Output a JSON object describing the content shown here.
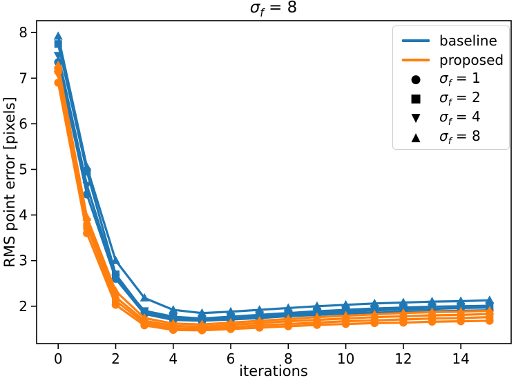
{
  "figure": {
    "title": {
      "sigma": "σ",
      "sub": "f",
      "rest": " = 8"
    },
    "x_label": "iterations",
    "y_label": "RMS point error [pixels]"
  },
  "colors": {
    "baseline": "#1f77b4",
    "proposed": "#ff7f0e",
    "axis": "#000000",
    "legend_border": "#cccccc",
    "background": "#ffffff"
  },
  "legend": {
    "position": "upper right",
    "items": [
      {
        "type": "line",
        "color_key": "baseline",
        "label": "baseline"
      },
      {
        "type": "line",
        "color_key": "proposed",
        "label": "proposed"
      },
      {
        "type": "marker",
        "marker": "circle",
        "sigma": "σ",
        "sub": "f",
        "rest": " = 1"
      },
      {
        "type": "marker",
        "marker": "square",
        "sigma": "σ",
        "sub": "f",
        "rest": " = 2"
      },
      {
        "type": "marker",
        "marker": "triangle-down",
        "sigma": "σ",
        "sub": "f",
        "rest": " = 4"
      },
      {
        "type": "marker",
        "marker": "triangle-up",
        "sigma": "σ",
        "sub": "f",
        "rest": " = 8"
      }
    ]
  },
  "chart_data": {
    "type": "line",
    "title": "σ_f = 8",
    "xlabel": "iterations",
    "ylabel": "RMS point error [pixels]",
    "grid": false,
    "legend_position": "upper right",
    "x": [
      0,
      1,
      2,
      3,
      4,
      5,
      6,
      7,
      8,
      9,
      10,
      11,
      12,
      13,
      14,
      15
    ],
    "x_ticks": [
      0,
      2,
      4,
      6,
      8,
      10,
      12,
      14
    ],
    "y_ticks": [
      2,
      3,
      4,
      5,
      6,
      7,
      8
    ],
    "xlim": [
      -0.75,
      15.75
    ],
    "ylim": [
      1.18,
      8.26
    ],
    "series": [
      {
        "name": "baseline sigma_f=1",
        "group": "baseline",
        "sigma_f": 1,
        "color": "#1f77b4",
        "marker": "circle",
        "values": [
          7.35,
          4.45,
          2.6,
          1.83,
          1.7,
          1.68,
          1.71,
          1.74,
          1.78,
          1.81,
          1.84,
          1.86,
          1.88,
          1.89,
          1.9,
          1.91
        ]
      },
      {
        "name": "baseline sigma_f=2",
        "group": "baseline",
        "sigma_f": 2,
        "color": "#1f77b4",
        "marker": "square",
        "values": [
          7.75,
          4.95,
          2.7,
          1.87,
          1.74,
          1.71,
          1.74,
          1.78,
          1.82,
          1.85,
          1.88,
          1.91,
          1.93,
          1.94,
          1.96,
          1.97
        ]
      },
      {
        "name": "baseline sigma_f=4",
        "group": "baseline",
        "sigma_f": 4,
        "color": "#1f77b4",
        "marker": "triangle-down",
        "values": [
          7.5,
          4.65,
          2.62,
          1.9,
          1.77,
          1.73,
          1.77,
          1.81,
          1.85,
          1.89,
          1.92,
          1.95,
          1.97,
          1.99,
          2.0,
          2.01
        ]
      },
      {
        "name": "baseline sigma_f=8",
        "group": "baseline",
        "sigma_f": 8,
        "color": "#1f77b4",
        "marker": "triangle-up",
        "values": [
          7.92,
          5.05,
          3.0,
          2.18,
          1.92,
          1.85,
          1.88,
          1.92,
          1.96,
          2.0,
          2.03,
          2.06,
          2.08,
          2.1,
          2.11,
          2.13
        ]
      },
      {
        "name": "proposed sigma_f=1",
        "group": "proposed",
        "sigma_f": 1,
        "color": "#ff7f0e",
        "marker": "circle",
        "values": [
          6.9,
          3.6,
          2.03,
          1.58,
          1.48,
          1.47,
          1.5,
          1.53,
          1.56,
          1.59,
          1.61,
          1.63,
          1.64,
          1.66,
          1.67,
          1.68
        ]
      },
      {
        "name": "proposed sigma_f=2",
        "group": "proposed",
        "sigma_f": 2,
        "color": "#ff7f0e",
        "marker": "square",
        "values": [
          7.18,
          3.75,
          2.12,
          1.63,
          1.52,
          1.51,
          1.54,
          1.58,
          1.61,
          1.64,
          1.67,
          1.69,
          1.71,
          1.73,
          1.74,
          1.76
        ]
      },
      {
        "name": "proposed sigma_f=4",
        "group": "proposed",
        "sigma_f": 4,
        "color": "#ff7f0e",
        "marker": "triangle-down",
        "values": [
          7.08,
          3.85,
          2.2,
          1.68,
          1.57,
          1.55,
          1.59,
          1.63,
          1.67,
          1.7,
          1.73,
          1.76,
          1.78,
          1.8,
          1.81,
          1.83
        ]
      },
      {
        "name": "proposed sigma_f=8",
        "group": "proposed",
        "sigma_f": 8,
        "color": "#ff7f0e",
        "marker": "triangle-up",
        "values": [
          7.28,
          3.95,
          2.33,
          1.74,
          1.62,
          1.6,
          1.64,
          1.68,
          1.72,
          1.76,
          1.79,
          1.82,
          1.85,
          1.87,
          1.88,
          1.9
        ]
      }
    ]
  }
}
